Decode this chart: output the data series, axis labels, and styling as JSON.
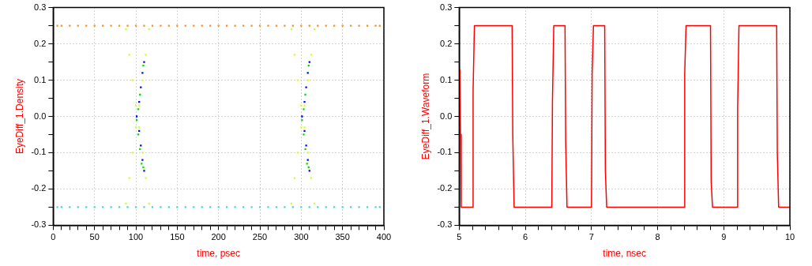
{
  "chart_data": [
    {
      "type": "scatter",
      "xlabel": "time, psec",
      "ylabel": "EyeDiff_1.Density",
      "xlim": [
        0,
        400
      ],
      "ylim": [
        -0.3,
        0.3
      ],
      "marker": "square",
      "grid": true,
      "xticks": [
        0,
        {
          "value": 10,
          "label": null
        },
        {
          "value": 20,
          "label": null
        },
        {
          "value": 30,
          "label": null
        },
        {
          "value": 40,
          "label": null
        },
        50,
        {
          "value": 60,
          "label": null
        },
        {
          "value": 70,
          "label": null
        },
        {
          "value": 80,
          "label": null
        },
        {
          "value": 90,
          "label": null
        },
        100,
        {
          "value": 110,
          "label": null
        },
        {
          "value": 120,
          "label": null
        },
        {
          "value": 130,
          "label": null
        },
        {
          "value": 140,
          "label": null
        },
        150,
        {
          "value": 160,
          "label": null
        },
        {
          "value": 170,
          "label": null
        },
        {
          "value": 180,
          "label": null
        },
        {
          "value": 190,
          "label": null
        },
        200,
        {
          "value": 210,
          "label": null
        },
        {
          "value": 220,
          "label": null
        },
        {
          "value": 230,
          "label": null
        },
        {
          "value": 240,
          "label": null
        },
        250,
        {
          "value": 260,
          "label": null
        },
        {
          "value": 270,
          "label": null
        },
        {
          "value": 280,
          "label": null
        },
        {
          "value": 290,
          "label": null
        },
        300,
        {
          "value": 310,
          "label": null
        },
        {
          "value": 320,
          "label": null
        },
        {
          "value": 330,
          "label": null
        },
        {
          "value": 340,
          "label": null
        },
        350,
        {
          "value": 360,
          "label": null
        },
        {
          "value": 370,
          "label": null
        },
        {
          "value": 380,
          "label": null
        },
        {
          "value": 390,
          "label": null
        },
        400
      ],
      "yticks": [
        -0.3,
        {
          "value": -0.25,
          "label": null
        },
        -0.2,
        {
          "value": -0.15,
          "label": null
        },
        -0.1,
        {
          "value": -0.05,
          "label": null
        },
        {
          "value": 0,
          "label": "0.0"
        },
        {
          "value": 0.05,
          "label": null
        },
        0.1,
        {
          "value": 0.15,
          "label": null
        },
        0.2,
        {
          "value": 0.25,
          "label": null
        },
        0.3
      ],
      "series": [
        {
          "color": "#ff8c1a",
          "x": [
            5,
            10,
            20,
            30,
            40,
            50,
            60,
            70,
            80,
            90,
            100,
            110,
            120,
            130,
            140,
            150,
            160,
            170,
            180,
            190,
            200,
            210,
            220,
            230,
            240,
            250,
            260,
            270,
            280,
            290,
            300,
            310,
            320,
            330,
            340,
            350,
            360,
            370,
            380,
            390,
            395
          ],
          "values": [
            0.25,
            0.25,
            0.25,
            0.25,
            0.25,
            0.25,
            0.25,
            0.25,
            0.25,
            0.25,
            0.25,
            0.25,
            0.25,
            0.25,
            0.25,
            0.25,
            0.25,
            0.25,
            0.25,
            0.25,
            0.25,
            0.25,
            0.25,
            0.25,
            0.25,
            0.25,
            0.25,
            0.25,
            0.25,
            0.25,
            0.25,
            0.25,
            0.25,
            0.25,
            0.25,
            0.25,
            0.25,
            0.25,
            0.25,
            0.25,
            0.25
          ]
        },
        {
          "color": "#33dde8",
          "x": [
            5,
            10,
            20,
            30,
            40,
            50,
            60,
            70,
            80,
            90,
            100,
            110,
            120,
            130,
            140,
            150,
            160,
            170,
            180,
            190,
            200,
            210,
            220,
            230,
            240,
            250,
            260,
            270,
            280,
            290,
            300,
            310,
            320,
            330,
            340,
            350,
            360,
            370,
            380,
            390,
            395
          ],
          "values": [
            -0.25,
            -0.25,
            -0.25,
            -0.25,
            -0.25,
            -0.25,
            -0.25,
            -0.25,
            -0.25,
            -0.25,
            -0.25,
            -0.25,
            -0.25,
            -0.25,
            -0.25,
            -0.25,
            -0.25,
            -0.25,
            -0.25,
            -0.25,
            -0.25,
            -0.25,
            -0.25,
            -0.25,
            -0.25,
            -0.25,
            -0.25,
            -0.25,
            -0.25,
            -0.25,
            -0.25,
            -0.25,
            -0.25,
            -0.25,
            -0.25,
            -0.25,
            -0.25,
            -0.25,
            -0.25,
            -0.25,
            -0.25
          ]
        },
        {
          "color": "#ccff33",
          "x": [
            116,
            112,
            108,
            104,
            100,
            96,
            92,
            88,
            88,
            92,
            96,
            100,
            104,
            108,
            112,
            116,
            316,
            312,
            308,
            304,
            300,
            296,
            292,
            288,
            288,
            292,
            296,
            300,
            304,
            308,
            312,
            316
          ],
          "values": [
            0.24,
            0.17,
            0.1,
            0.03,
            -0.03,
            -0.1,
            -0.17,
            -0.24,
            0.24,
            0.17,
            0.1,
            0.03,
            -0.03,
            -0.1,
            -0.17,
            -0.24,
            0.24,
            0.17,
            0.1,
            0.03,
            -0.03,
            -0.1,
            -0.17,
            -0.24,
            0.24,
            0.17,
            0.1,
            0.03,
            -0.03,
            -0.1,
            -0.17,
            -0.24
          ]
        },
        {
          "color": "#0000ff",
          "x": [
            110,
            108,
            106,
            104,
            101,
            104,
            106,
            108,
            110,
            310,
            308,
            306,
            304,
            301,
            304,
            306,
            308,
            310
          ],
          "values": [
            0.15,
            0.12,
            0.08,
            0.04,
            0,
            -0.04,
            -0.08,
            -0.12,
            -0.15,
            0.15,
            0.12,
            0.08,
            0.04,
            0,
            -0.04,
            -0.08,
            -0.12,
            -0.15
          ]
        },
        {
          "color": "#00dd00",
          "x": [
            109,
            105,
            103,
            101,
            103,
            105,
            107,
            109,
            309,
            305,
            303,
            301,
            303,
            305,
            307,
            309
          ],
          "values": [
            0.14,
            0.06,
            0.02,
            -0.01,
            -0.05,
            -0.09,
            -0.13,
            -0.14,
            0.14,
            0.06,
            0.02,
            -0.01,
            -0.05,
            -0.09,
            -0.13,
            -0.14
          ]
        }
      ]
    },
    {
      "type": "line",
      "xlabel": "time, nsec",
      "ylabel": "EyeDiff_1.Waveform",
      "xlim": [
        5,
        10
      ],
      "ylim": [
        -0.3,
        0.3
      ],
      "marker": "none",
      "grid": true,
      "xticks": [
        5,
        {
          "value": 5.2,
          "label": null
        },
        {
          "value": 5.4,
          "label": null
        },
        {
          "value": 5.6,
          "label": null
        },
        {
          "value": 5.8,
          "label": null
        },
        6,
        {
          "value": 6.2,
          "label": null
        },
        {
          "value": 6.4,
          "label": null
        },
        {
          "value": 6.6,
          "label": null
        },
        {
          "value": 6.8,
          "label": null
        },
        7,
        {
          "value": 7.2,
          "label": null
        },
        {
          "value": 7.4,
          "label": null
        },
        {
          "value": 7.6,
          "label": null
        },
        {
          "value": 7.8,
          "label": null
        },
        8,
        {
          "value": 8.2,
          "label": null
        },
        {
          "value": 8.4,
          "label": null
        },
        {
          "value": 8.6,
          "label": null
        },
        {
          "value": 8.8,
          "label": null
        },
        9,
        {
          "value": 9.2,
          "label": null
        },
        {
          "value": 9.4,
          "label": null
        },
        {
          "value": 9.6,
          "label": null
        },
        {
          "value": 9.8,
          "label": null
        },
        10
      ],
      "yticks": [
        -0.3,
        {
          "value": -0.25,
          "label": null
        },
        -0.2,
        {
          "value": -0.15,
          "label": null
        },
        -0.1,
        {
          "value": -0.05,
          "label": null
        },
        {
          "value": 0,
          "label": "0.0"
        },
        {
          "value": 0.05,
          "label": null
        },
        0.1,
        {
          "value": 0.15,
          "label": null
        },
        0.2,
        {
          "value": 0.25,
          "label": null
        },
        0.3
      ],
      "series": [
        {
          "color": "#ff0000",
          "x": [
            5.01,
            5.02,
            5.03,
            5.2,
            5.21,
            5.23,
            5.8,
            5.81,
            5.83,
            6.4,
            6.41,
            6.43,
            6.6,
            6.61,
            6.63,
            7,
            7.01,
            7.03,
            7.2,
            7.21,
            7.23,
            8.4,
            8.41,
            8.43,
            8.8,
            8.81,
            8.83,
            9.2,
            9.21,
            9.23,
            9.8,
            9.81,
            9.83,
            10
          ],
          "values": [
            0.13,
            -0.05,
            -0.25,
            -0.25,
            0.07,
            0.25,
            0.25,
            -0.05,
            -0.25,
            -0.25,
            0.04,
            0.25,
            0.25,
            -0.07,
            -0.25,
            -0.25,
            0.12,
            0.25,
            0.25,
            -0.15,
            -0.25,
            -0.25,
            0.12,
            0.25,
            0.25,
            -0.18,
            -0.25,
            -0.25,
            0.02,
            0.25,
            0.25,
            -0.1,
            -0.25,
            -0.25
          ]
        }
      ]
    }
  ]
}
